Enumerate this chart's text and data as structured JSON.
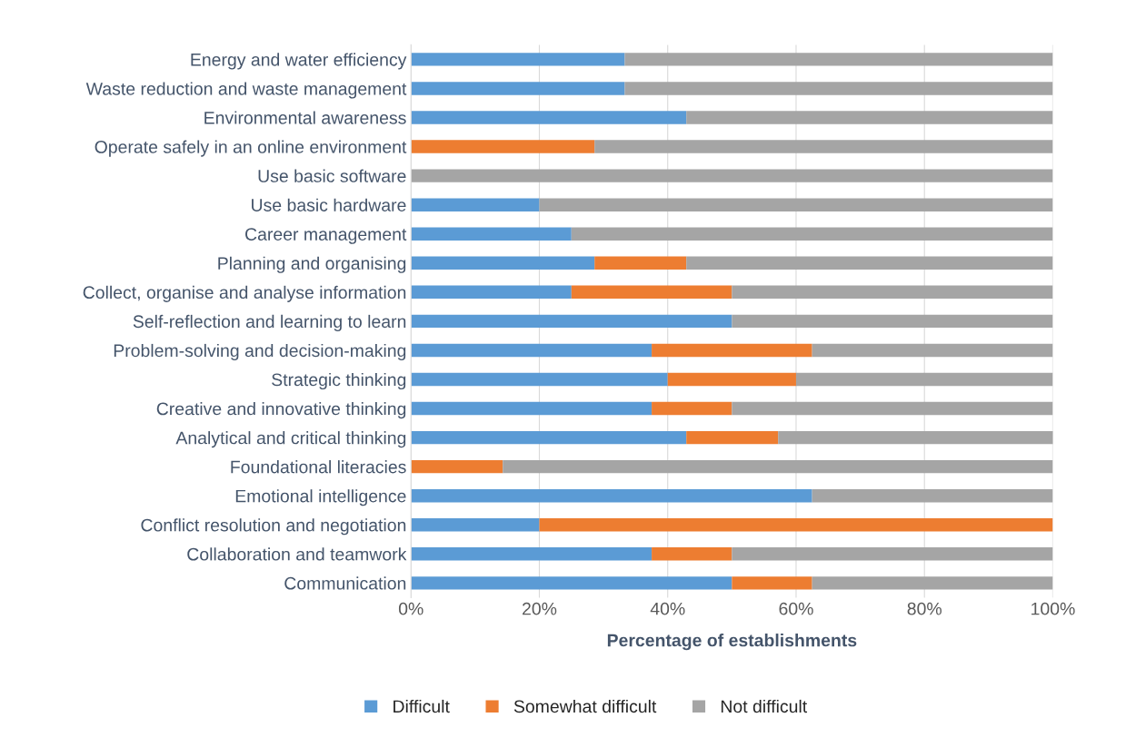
{
  "chart_data": {
    "type": "bar",
    "orientation": "horizontal",
    "stacked": true,
    "xlabel": "Percentage of establishments",
    "categories": [
      "Energy and water efficiency",
      "Waste reduction and waste management",
      "Environmental awareness",
      "Operate safely in an online environment",
      "Use basic software",
      "Use basic hardware",
      "Career management",
      "Planning and organising",
      "Collect, organise and analyse information",
      "Self-reflection and learning to learn",
      "Problem-solving and decision-making",
      "Strategic thinking",
      "Creative and innovative thinking",
      "Analytical and critical thinking",
      "Foundational literacies",
      "Emotional intelligence",
      "Conflict resolution and negotiation",
      "Collaboration and teamwork",
      "Communication"
    ],
    "series": [
      {
        "name": "Difficult",
        "color": "#5b9bd5",
        "values": [
          33.3,
          33.3,
          42.9,
          0,
          0,
          20,
          25,
          28.6,
          25,
          50,
          37.5,
          40,
          37.5,
          42.9,
          0,
          62.5,
          20,
          37.5,
          50
        ]
      },
      {
        "name": "Somewhat difficult",
        "color": "#ed7d31",
        "values": [
          0,
          0,
          0,
          28.6,
          0,
          0,
          0,
          14.3,
          25,
          0,
          25,
          20,
          12.5,
          14.3,
          14.3,
          0,
          80,
          12.5,
          12.5
        ]
      },
      {
        "name": "Not difficult",
        "color": "#a5a5a5",
        "values": [
          66.7,
          66.7,
          57.1,
          71.4,
          100,
          80,
          75,
          57.1,
          50,
          50,
          37.5,
          40,
          50,
          42.9,
          85.7,
          37.5,
          0,
          50,
          37.5
        ]
      }
    ],
    "xlim": [
      0,
      100
    ],
    "xticks": [
      {
        "value": 0,
        "label": "0%"
      },
      {
        "value": 20,
        "label": "20%"
      },
      {
        "value": 40,
        "label": "40%"
      },
      {
        "value": 60,
        "label": "60%"
      },
      {
        "value": 80,
        "label": "80%"
      },
      {
        "value": 100,
        "label": "100%"
      }
    ],
    "grid": "x",
    "legend": "bottom"
  }
}
